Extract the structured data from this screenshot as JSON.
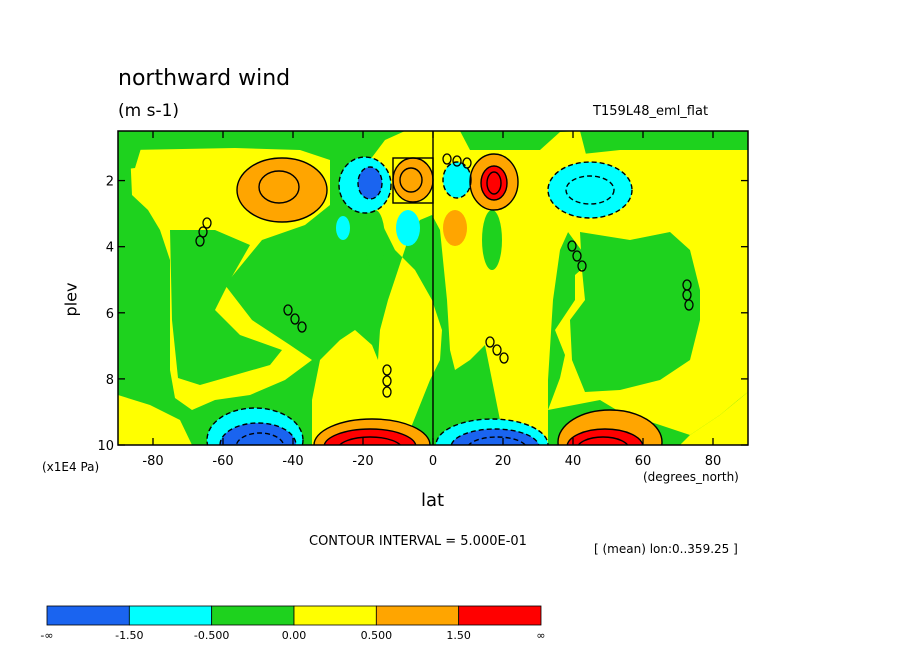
{
  "chart_data": {
    "type": "heatmap",
    "title": "northward wind",
    "units": "(m s-1)",
    "run_label": "T159L48_eml_flat",
    "xlabel": "lat",
    "xunits": "(degrees_north)",
    "ylabel": "plev",
    "yunits": "(x1E4 Pa)",
    "contour_interval": "CONTOUR INTERVAL = 5.000E-01",
    "mean_note": "[ (mean) lon:0..359.25 ]",
    "xlim": [
      -90,
      90
    ],
    "ylim": [
      0.5,
      10
    ],
    "x_ticks": [
      -80,
      -60,
      -40,
      -20,
      0,
      20,
      40,
      60,
      80
    ],
    "x_tick_labels": [
      "-80",
      "-60",
      "-40",
      "-20",
      "0",
      "20",
      "40",
      "60",
      "80"
    ],
    "y_ticks": [
      2,
      4,
      6,
      8,
      10
    ],
    "y_tick_labels": [
      "2",
      "4",
      "6",
      "8",
      "10"
    ],
    "colorbar": {
      "colors": [
        "#1a64f0",
        "#00ffff",
        "#1ed21e",
        "#ffff00",
        "#ffa500",
        "#ff0000"
      ],
      "labels": [
        "-∞",
        "-1.50",
        "-0.500",
        "0.00",
        "0.500",
        "1.50",
        "∞"
      ]
    },
    "features": [
      {
        "lat": -45,
        "plev": 2.0,
        "value": 1.0,
        "band": 4
      },
      {
        "lat": -45,
        "plev": 1.8,
        "value": 1.2,
        "band": 4
      },
      {
        "lat": -19,
        "plev": 1.7,
        "value": -1.7,
        "band": 0
      },
      {
        "lat": -19,
        "plev": 1.6,
        "value": -1.2,
        "band": 1
      },
      {
        "lat": -6,
        "plev": 1.6,
        "value": 1.2,
        "band": 4
      },
      {
        "lat": -6,
        "plev": 1.6,
        "value": 0.9,
        "band": 4
      },
      {
        "lat": 7,
        "plev": 1.7,
        "value": -0.8,
        "band": 1
      },
      {
        "lat": 19,
        "plev": 1.7,
        "value": 1.7,
        "band": 5
      },
      {
        "lat": 47,
        "plev": 1.8,
        "value": -1.0,
        "band": 1
      },
      {
        "lat": -26,
        "plev": 3.1,
        "value": -0.6,
        "band": 1
      },
      {
        "lat": -7,
        "plev": 3.1,
        "value": -0.7,
        "band": 1
      },
      {
        "lat": 6,
        "plev": 3.1,
        "value": 0.7,
        "band": 4
      },
      {
        "lat": -49,
        "plev": 9.7,
        "value": -1.5,
        "band": 0
      },
      {
        "lat": -19,
        "plev": 9.8,
        "value": 1.6,
        "band": 5
      },
      {
        "lat": 18,
        "plev": 9.8,
        "value": -1.6,
        "band": 0
      },
      {
        "lat": 47,
        "plev": 9.8,
        "value": 1.6,
        "band": 5
      }
    ]
  }
}
